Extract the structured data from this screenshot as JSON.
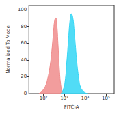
{
  "chart_data": {
    "type": "area",
    "x_label": "FITC-A",
    "y_label": "Normalized To Mode",
    "log": "x",
    "grid": false,
    "xlim": [
      20,
      250000
    ],
    "xticks": [
      {
        "value": 100,
        "label": "10²"
      },
      {
        "value": 1000,
        "label": "10³"
      },
      {
        "value": 10000,
        "label": "10⁴"
      },
      {
        "value": 100000,
        "label": "10⁵"
      }
    ],
    "ylim": [
      0,
      105
    ],
    "yticks": [
      0,
      20,
      40,
      60,
      80,
      100
    ],
    "series": [
      {
        "color": "#f08c8c",
        "x": [
          60,
          80,
          100,
          130,
          160,
          200,
          250,
          300,
          350,
          400,
          450,
          500,
          600,
          700,
          800
        ],
        "values": [
          0,
          2,
          5,
          10,
          18,
          30,
          50,
          72,
          88,
          90,
          80,
          60,
          25,
          8,
          1
        ]
      },
      {
        "color": "#33d6f5",
        "x": [
          700,
          900,
          1100,
          1300,
          1600,
          1900,
          2200,
          2600,
          3000,
          3500,
          4000,
          5000,
          6000,
          8000,
          10000,
          13000
        ],
        "values": [
          0,
          5,
          15,
          35,
          65,
          88,
          95,
          90,
          75,
          55,
          38,
          18,
          8,
          3,
          1,
          0
        ]
      }
    ]
  }
}
